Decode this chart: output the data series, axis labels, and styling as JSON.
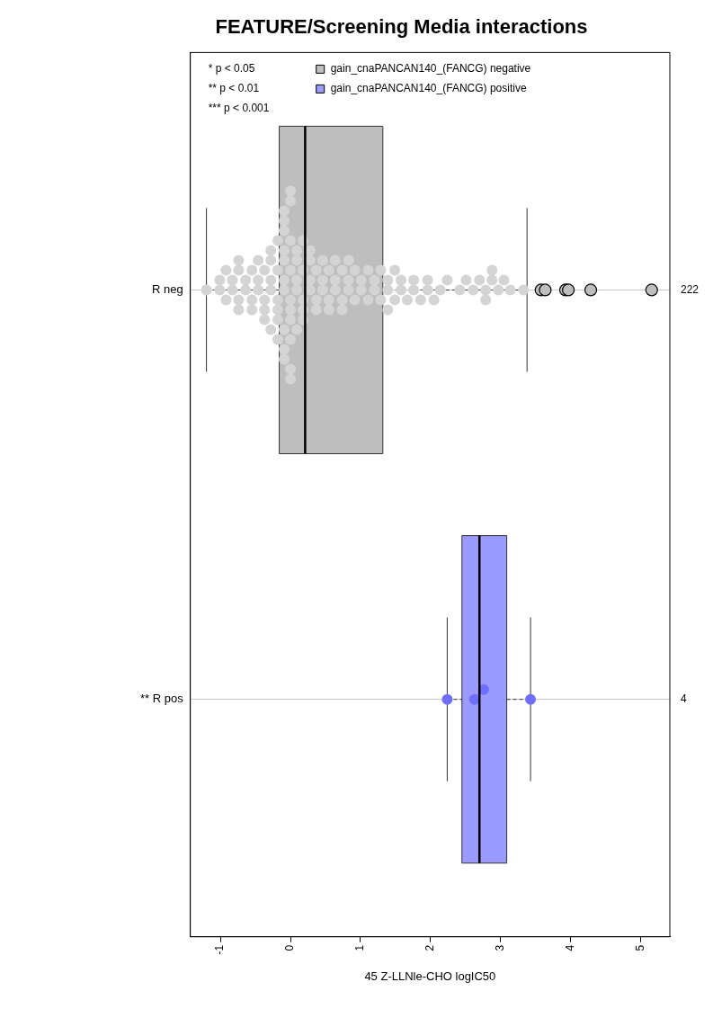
{
  "chart_data": {
    "type": "box",
    "orientation": "horizontal",
    "title": "FEATURE/Screening Media interactions",
    "xlabel": "45 Z-LLNle-CHO logIC50",
    "categories": [
      "R neg",
      "** R pos"
    ],
    "xlim": [
      -1.43,
      5.42
    ],
    "xticks": [
      -1,
      0,
      1,
      2,
      3,
      4,
      5
    ],
    "grid": "y",
    "legend": "top left",
    "marker": "circle",
    "series": [
      {
        "name": "gain_cnaPANCAN140_(FANCG) negative",
        "color": "#bebebe",
        "boxes": [
          {
            "low": -1.2,
            "q1": -0.16,
            "median": 0.21,
            "q3": 1.32,
            "high": 3.38,
            "outliers": [
              3.58,
              3.64,
              3.93,
              3.97,
              4.29,
              5.16
            ]
          },
          null
        ]
      },
      {
        "name": "gain_cnaPANCAN140_(FANCG) positive",
        "color": "#9a9aff",
        "boxes": [
          null,
          {
            "low": 2.24,
            "q1": 2.45,
            "median": 2.7,
            "q3": 3.09,
            "high": 3.43
          }
        ]
      },
      {
        "type": "scatter",
        "color": "#d4d4d4",
        "x": [
          "R neg",
          "R neg",
          "R neg",
          "R neg",
          "R neg",
          "R neg",
          "R neg",
          "R neg",
          "R neg",
          "R neg",
          "R neg",
          "R neg",
          "R neg",
          "R neg",
          "R neg",
          "R neg",
          "R neg",
          "R neg",
          "R neg",
          "R neg",
          "R neg",
          "R neg",
          "R neg",
          "R neg",
          "R neg",
          "R neg",
          "R neg",
          "R neg",
          "R neg",
          "R neg",
          "R neg",
          "R neg",
          "R neg",
          "R neg",
          "R neg",
          "R neg",
          "R neg",
          "R neg",
          "R neg",
          "R neg",
          "R neg",
          "R neg",
          "R neg",
          "R neg",
          "R neg",
          "R neg",
          "R neg",
          "R neg",
          "R neg",
          "R neg",
          "R neg",
          "R neg",
          "R neg",
          "R neg",
          "R neg",
          "R neg",
          "R neg",
          "R neg",
          "R neg",
          "R neg",
          "R neg",
          "R neg",
          "R neg",
          "R neg",
          "R neg",
          "R neg",
          "R neg",
          "R neg",
          "R neg",
          "R neg",
          "R neg",
          "R neg",
          "R neg",
          "R neg",
          "R neg",
          "R neg",
          "R neg",
          "R neg",
          "R neg",
          "R neg",
          "R neg",
          "R neg",
          "R neg",
          "R neg",
          "R neg",
          "R neg",
          "R neg",
          "R neg",
          "R neg",
          "R neg",
          "R neg",
          "R neg",
          "R neg",
          "R neg",
          "R neg",
          "R neg",
          "R neg",
          "R neg",
          "R neg",
          "R neg",
          "R neg",
          "R neg",
          "R neg",
          "R neg",
          "R neg",
          "R neg",
          "R neg",
          "R neg",
          "R neg",
          "R neg",
          "R neg",
          "R neg",
          "R neg",
          "R neg",
          "R neg",
          "R neg",
          "R neg",
          "R neg",
          "R neg",
          "R neg",
          "R neg",
          "R neg",
          "R neg",
          "R neg"
        ],
        "values": [
          -1.2,
          -1.01,
          -1.01,
          -0.92,
          -0.92,
          -0.83,
          -0.83,
          -0.74,
          -0.74,
          -0.74,
          -0.74,
          -0.64,
          -0.64,
          -0.55,
          -0.55,
          -0.55,
          -0.46,
          -0.46,
          -0.46,
          -0.37,
          -0.37,
          -0.37,
          -0.37,
          -0.28,
          -0.28,
          -0.28,
          -0.28,
          -0.28,
          -0.18,
          -0.18,
          -0.18,
          -0.18,
          -0.18,
          -0.18,
          -0.09,
          -0.09,
          -0.09,
          -0.09,
          -0.09,
          -0.09,
          -0.09,
          -0.09,
          -0.09,
          -0.09,
          0,
          0,
          0,
          0,
          0,
          0,
          0,
          0,
          0,
          0,
          0.09,
          0.09,
          0.09,
          0.09,
          0.09,
          0.18,
          0.18,
          0.18,
          0.18,
          0.18,
          0.28,
          0.28,
          0.28,
          0.28,
          0.37,
          0.37,
          0.37,
          0.46,
          0.46,
          0.46,
          0.55,
          0.55,
          0.55,
          0.64,
          0.64,
          0.64,
          0.74,
          0.74,
          0.74,
          0.83,
          0.83,
          0.83,
          0.92,
          0.92,
          1.01,
          1.01,
          1.11,
          1.11,
          1.2,
          1.2,
          1.29,
          1.29,
          1.39,
          1.39,
          1.39,
          1.49,
          1.49,
          1.58,
          1.58,
          1.67,
          1.76,
          1.76,
          1.86,
          1.96,
          1.96,
          2.05,
          2.14,
          2.24,
          2.42,
          2.51,
          2.61,
          2.7,
          2.79,
          2.79,
          2.88,
          2.88,
          2.97,
          3.05,
          3.14,
          3.33
        ]
      },
      {
        "type": "scatter",
        "color": "#6f6fff",
        "x": [
          "** R pos",
          "** R pos",
          "** R pos",
          "** R pos"
        ],
        "values": [
          2.24,
          2.63,
          2.76,
          3.43
        ]
      }
    ],
    "y2_categories": [
      "222",
      "4"
    ],
    "annotations": [
      "* p < 0.05",
      "** p < 0.01",
      "*** p < 0.001"
    ]
  }
}
